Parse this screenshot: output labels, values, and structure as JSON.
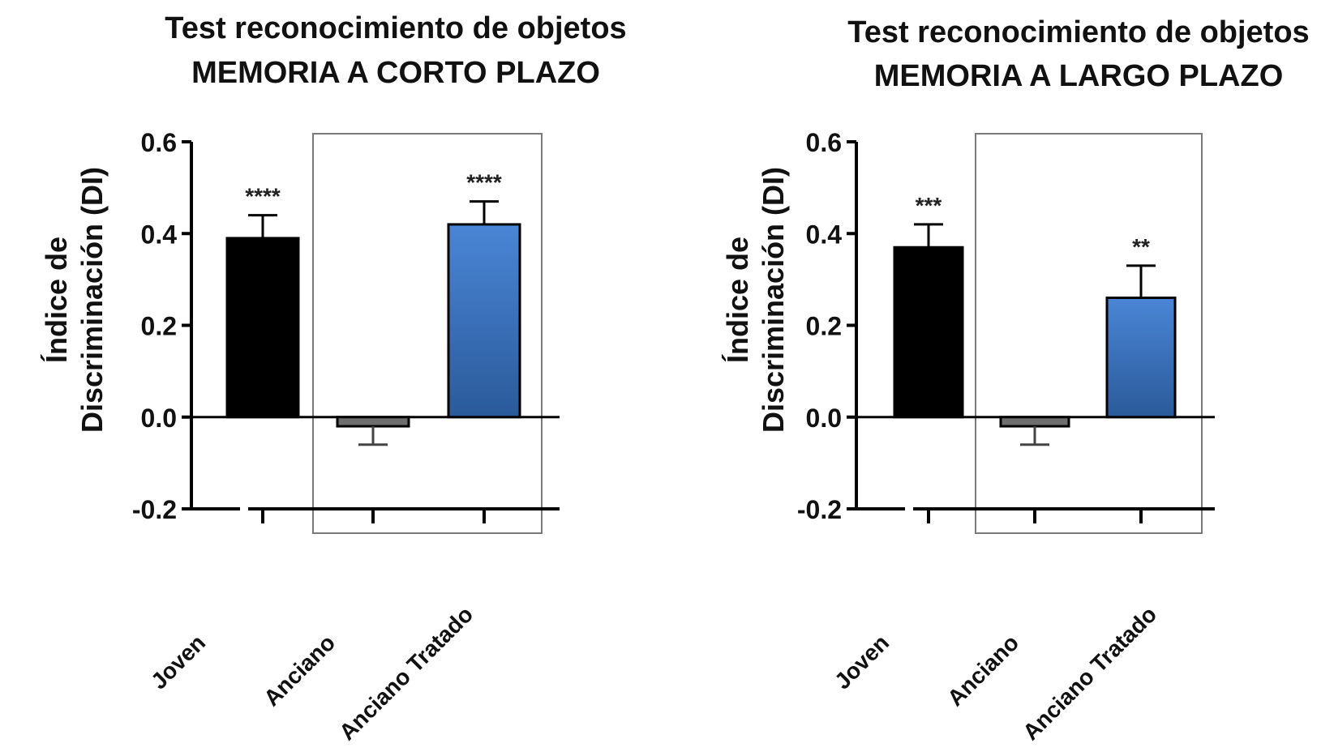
{
  "chart_data": [
    {
      "type": "bar",
      "title": "Test reconocimiento de objetos",
      "subtitle": "MEMORIA A CORTO PLAZO",
      "xlabel": "",
      "ylabel_lines": [
        "Índice de",
        "Discriminación (DI)"
      ],
      "ylim": [
        -0.2,
        0.6
      ],
      "yticks": [
        0.6,
        0.4,
        0.2,
        0.0,
        -0.2
      ],
      "ytick_labels": [
        "0.6",
        "0.4",
        "0.2",
        "0.0",
        "-0.2"
      ],
      "categories": [
        "Joven",
        "Anciano",
        "Anciano Tratado"
      ],
      "values": [
        0.39,
        -0.02,
        0.42
      ],
      "errors": [
        0.05,
        0.04,
        0.05
      ],
      "annotations": [
        "****",
        "",
        "****"
      ],
      "bar_colors": [
        "#000000",
        "#6e6e6e",
        "#3a6fb7"
      ],
      "highlight_box": [
        "Anciano",
        "Anciano Tratado"
      ],
      "grid": false
    },
    {
      "type": "bar",
      "title": "Test reconocimiento de objetos",
      "subtitle": "MEMORIA A LARGO PLAZO",
      "xlabel": "",
      "ylabel_lines": [
        "Índice de",
        "Discriminación (DI)"
      ],
      "ylim": [
        -0.2,
        0.6
      ],
      "yticks": [
        0.6,
        0.4,
        0.2,
        0.0,
        -0.2
      ],
      "ytick_labels": [
        "0.6",
        "0.4",
        "0.2",
        "0.0",
        "-0.2"
      ],
      "categories": [
        "Joven",
        "Anciano",
        "Anciano Tratado"
      ],
      "values": [
        0.37,
        -0.02,
        0.26
      ],
      "errors": [
        0.05,
        0.04,
        0.07
      ],
      "annotations": [
        "***",
        "",
        "**"
      ],
      "bar_colors": [
        "#000000",
        "#6e6e6e",
        "#3a6fb7"
      ],
      "highlight_box": [
        "Anciano",
        "Anciano Tratado"
      ],
      "grid": false
    }
  ]
}
